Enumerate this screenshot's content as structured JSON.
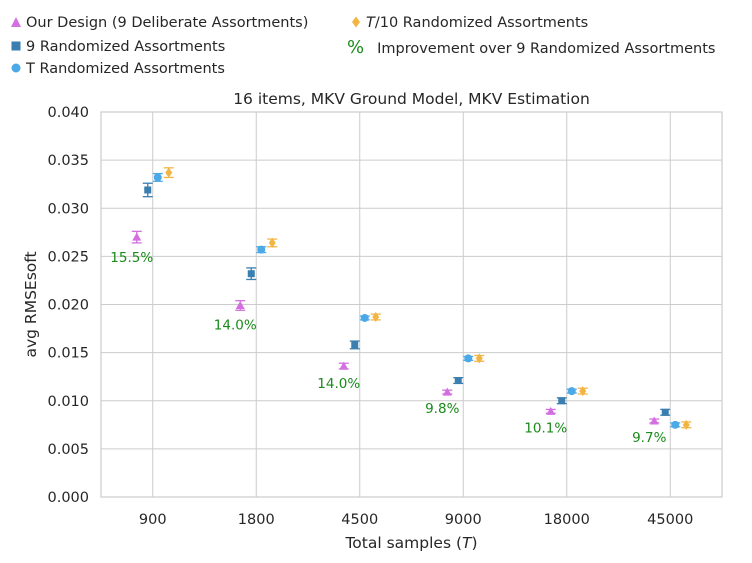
{
  "chart_data": {
    "type": "scatter",
    "title": "16 items, MKV Ground Model, MKV Estimation",
    "xlabel": "Total samples (T)",
    "ylabel": "avg RMSEsoft",
    "ylim": [
      0.0,
      0.04
    ],
    "yticks": [
      "0.000",
      "0.005",
      "0.010",
      "0.015",
      "0.020",
      "0.025",
      "0.030",
      "0.035",
      "0.040"
    ],
    "categories": [
      "900",
      "1800",
      "4500",
      "9000",
      "18000",
      "45000"
    ],
    "legend": {
      "placement": "top, outside plot",
      "entries": [
        {
          "key": "deliberate",
          "label": "Our Design (9 Deliberate Assortments)",
          "marker": "triangle"
        },
        {
          "key": "rand9",
          "label": "9 Randomized Assortments",
          "marker": "square"
        },
        {
          "key": "randT",
          "label": "T Randomized Assortments",
          "marker": "circle"
        },
        {
          "key": "randT10",
          "label": "T/10 Randomized Assortments",
          "marker": "diamond"
        },
        {
          "key": "improvement",
          "label": "Improvement over 9 Randomized Assortments",
          "marker": "%"
        }
      ]
    },
    "colors": {
      "deliberate": "#d36fe0",
      "rand9": "#3a7fb0",
      "randT": "#4aa9e6",
      "randT10": "#f2b544",
      "improvement": "#1a8a1a"
    },
    "series": [
      {
        "key": "deliberate",
        "name": "Our Design (9 Deliberate Assortments)",
        "values": [
          0.027,
          0.0199,
          0.0136,
          0.0109,
          0.0089,
          0.0079
        ],
        "errors": [
          0.0006,
          0.0005,
          0.0003,
          0.0002,
          0.0002,
          0.0002
        ]
      },
      {
        "key": "rand9",
        "name": "9 Randomized Assortments",
        "values": [
          0.0319,
          0.0232,
          0.0158,
          0.0121,
          0.01,
          0.0088
        ],
        "errors": [
          0.0007,
          0.0006,
          0.0004,
          0.0003,
          0.0003,
          0.0003
        ]
      },
      {
        "key": "randT",
        "name": "T Randomized Assortments",
        "values": [
          0.0332,
          0.0257,
          0.0186,
          0.0144,
          0.011,
          0.0075
        ],
        "errors": [
          0.0004,
          0.0003,
          0.0002,
          0.0002,
          0.0002,
          0.0002
        ]
      },
      {
        "key": "randT10",
        "name": "T/10 Randomized Assortments",
        "values": [
          0.0337,
          0.0264,
          0.0187,
          0.0144,
          0.011,
          0.0075
        ],
        "errors": [
          0.0005,
          0.0004,
          0.0003,
          0.0003,
          0.0003,
          0.0003
        ]
      }
    ],
    "improvement_labels": [
      "15.5%",
      "14.0%",
      "14.0%",
      "9.8%",
      "10.1%",
      "9.7%"
    ],
    "grid": true
  }
}
